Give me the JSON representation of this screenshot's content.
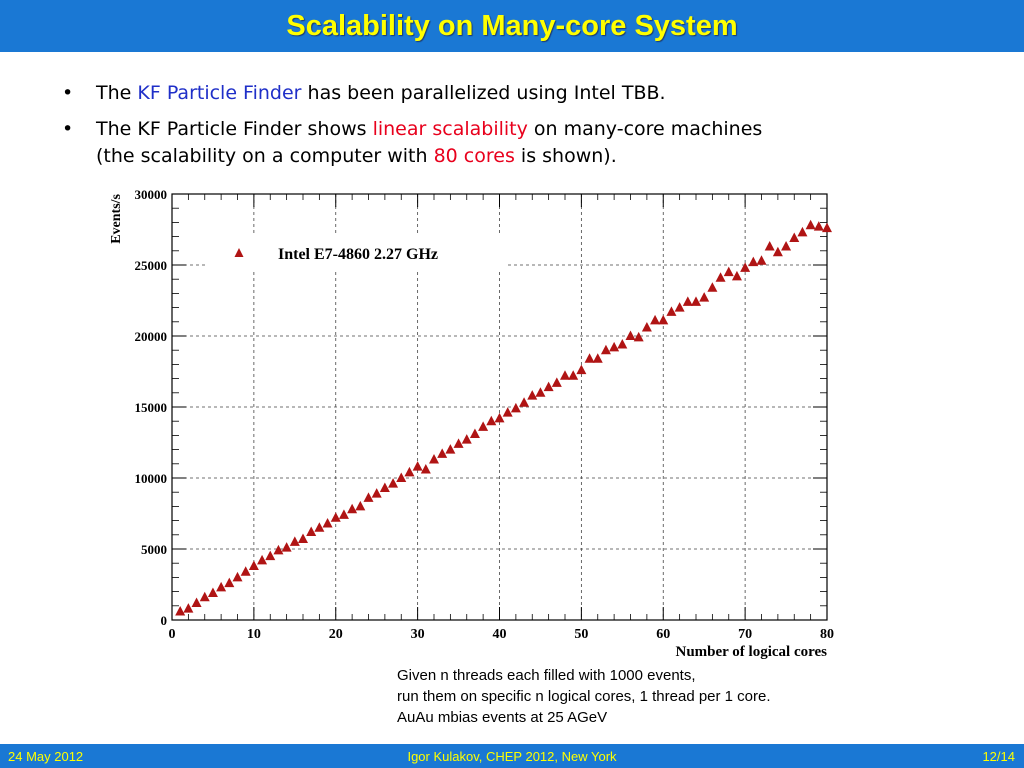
{
  "slide": {
    "title": "Scalability on Many-core System",
    "bullets": [
      {
        "pre": "The ",
        "highlight": "KF Particle Finder",
        "post": " has been parallelized using Intel TBB."
      },
      {
        "pre": "The KF Particle Finder shows ",
        "highlight1": "linear scalability",
        "mid": " on many-core machines",
        "line2_pre": "(the scalability on a computer with ",
        "highlight2": "80 cores",
        "line2_post": " is shown)."
      }
    ],
    "caption": [
      "Given n threads each filled with 1000 events,",
      "run them on specific n logical cores, 1 thread per 1 core.",
      "AuAu mbias events at 25 AGeV"
    ]
  },
  "footer": {
    "date": "24 May 2012",
    "author": "Igor Kulakov, CHEP 2012, New York",
    "page": "12/14"
  },
  "colors": {
    "header_bg": "#1a78d4",
    "title": "#ffff00",
    "highlight_blue": "#1f2fc8",
    "highlight_red": "#e8001c",
    "marker": "#b01414"
  },
  "chart_data": {
    "type": "scatter",
    "xlabel": "Number of logical cores",
    "ylabel": "Events/s",
    "xlim": [
      0,
      80
    ],
    "ylim": [
      0,
      30000
    ],
    "x_ticks": [
      0,
      10,
      20,
      30,
      40,
      50,
      60,
      70,
      80
    ],
    "y_ticks": [
      0,
      5000,
      10000,
      15000,
      20000,
      25000,
      30000
    ],
    "grid": true,
    "legend_position": "top-left",
    "series": [
      {
        "name": "Intel E7-4860 2.27 GHz",
        "marker": "triangle",
        "x": [
          1,
          2,
          3,
          4,
          5,
          6,
          7,
          8,
          9,
          10,
          11,
          12,
          13,
          14,
          15,
          16,
          17,
          18,
          19,
          20,
          21,
          22,
          23,
          24,
          25,
          26,
          27,
          28,
          29,
          30,
          31,
          32,
          33,
          34,
          35,
          36,
          37,
          38,
          39,
          40,
          41,
          42,
          43,
          44,
          45,
          46,
          47,
          48,
          49,
          50,
          51,
          52,
          53,
          54,
          55,
          56,
          57,
          58,
          59,
          60,
          61,
          62,
          63,
          64,
          65,
          66,
          67,
          68,
          69,
          70,
          71,
          72,
          73,
          74,
          75,
          76,
          77,
          78,
          79,
          80
        ],
        "y": [
          600,
          800,
          1200,
          1600,
          1900,
          2300,
          2600,
          3000,
          3400,
          3800,
          4200,
          4500,
          4900,
          5100,
          5500,
          5700,
          6200,
          6500,
          6800,
          7200,
          7400,
          7800,
          8000,
          8600,
          8900,
          9300,
          9600,
          10000,
          10400,
          10800,
          10600,
          11300,
          11700,
          12000,
          12400,
          12700,
          13100,
          13600,
          14000,
          14200,
          14600,
          14900,
          15300,
          15800,
          16000,
          16400,
          16700,
          17200,
          17200,
          17600,
          18400,
          18400,
          19000,
          19200,
          19400,
          20000,
          19900,
          20600,
          21100,
          21100,
          21700,
          22000,
          22400,
          22400,
          22700,
          23400,
          24100,
          24500,
          24200,
          24800,
          25200,
          25300,
          26300,
          25900,
          26300,
          26900,
          27300,
          27800,
          27700,
          27600
        ]
      }
    ]
  }
}
